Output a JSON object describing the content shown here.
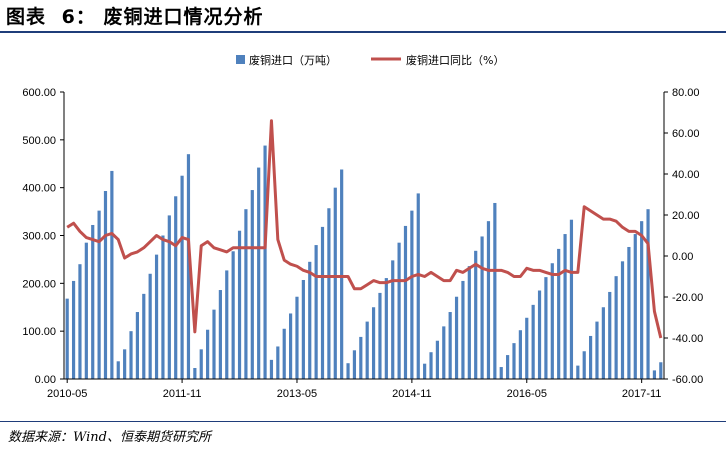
{
  "figure": {
    "title_label": "图表",
    "title_number": "6：",
    "title_text": "废铜进口情况分析",
    "source": "数据来源：Wind、恒泰期货研究所"
  },
  "colors": {
    "bar": "#4f81bd",
    "line": "#c0504d",
    "axis": "#000000",
    "rule": "#1f3d7a"
  },
  "chart_data": {
    "type": "bar",
    "legend_position": "top",
    "grid": false,
    "series": [
      {
        "name": "废铜进口（万吨）",
        "type": "bar",
        "axis": "left"
      },
      {
        "name": "废铜进口同比（%）",
        "type": "line",
        "axis": "right"
      }
    ],
    "y_left": {
      "min": 0,
      "max": 600,
      "ticks": [
        "0.00",
        "100.00",
        "200.00",
        "300.00",
        "400.00",
        "500.00",
        "600.00"
      ]
    },
    "y_right": {
      "min": -60,
      "max": 80,
      "ticks": [
        "-60.00",
        "-40.00",
        "-20.00",
        "0.00",
        "20.00",
        "40.00",
        "60.00",
        "80.00"
      ]
    },
    "x_tick_labels": [
      "2010-05",
      "2011-11",
      "2013-05",
      "2014-11",
      "2016-05",
      "2017-11"
    ],
    "x_tick_indices": [
      0,
      18,
      36,
      54,
      72,
      90
    ],
    "bar_values": [
      168,
      205,
      240,
      285,
      322,
      352,
      393,
      435,
      37,
      62,
      100,
      140,
      178,
      220,
      260,
      300,
      342,
      382,
      425,
      470,
      23,
      62,
      103,
      145,
      186,
      227,
      267,
      310,
      355,
      395,
      442,
      488,
      40,
      68,
      105,
      137,
      172,
      207,
      245,
      280,
      318,
      357,
      400,
      438,
      33,
      60,
      88,
      120,
      150,
      180,
      211,
      248,
      285,
      320,
      352,
      388,
      32,
      56,
      80,
      110,
      140,
      172,
      205,
      236,
      268,
      298,
      330,
      368,
      25,
      50,
      75,
      102,
      128,
      155,
      185,
      213,
      242,
      272,
      303,
      333,
      28,
      58,
      90,
      120,
      150,
      182,
      215,
      246,
      276,
      303,
      330,
      355,
      18,
      35
    ],
    "line_values": [
      14,
      16,
      12,
      9,
      8,
      7,
      10,
      11,
      8,
      -1,
      1,
      2,
      4,
      7,
      10,
      8,
      7,
      5,
      9,
      8,
      -37,
      5,
      7,
      4,
      3,
      2,
      4,
      4,
      4,
      4,
      4,
      4,
      66,
      8,
      -2,
      -4,
      -5,
      -7,
      -8,
      -10,
      -10,
      -10,
      -10,
      -10,
      -10,
      -16,
      -16,
      -14,
      -12,
      -13,
      -13,
      -12,
      -12,
      -12,
      -10,
      -9,
      -10,
      -8,
      -10,
      -12,
      -12,
      -7,
      -8,
      -6,
      -4,
      -6,
      -7,
      -7,
      -7,
      -8,
      -10,
      -10,
      -6,
      -7,
      -7,
      -8,
      -9,
      -9,
      -7,
      -8,
      -8,
      24,
      22,
      20,
      18,
      18,
      17,
      14,
      12,
      12,
      10,
      6,
      -27,
      -40
    ]
  }
}
